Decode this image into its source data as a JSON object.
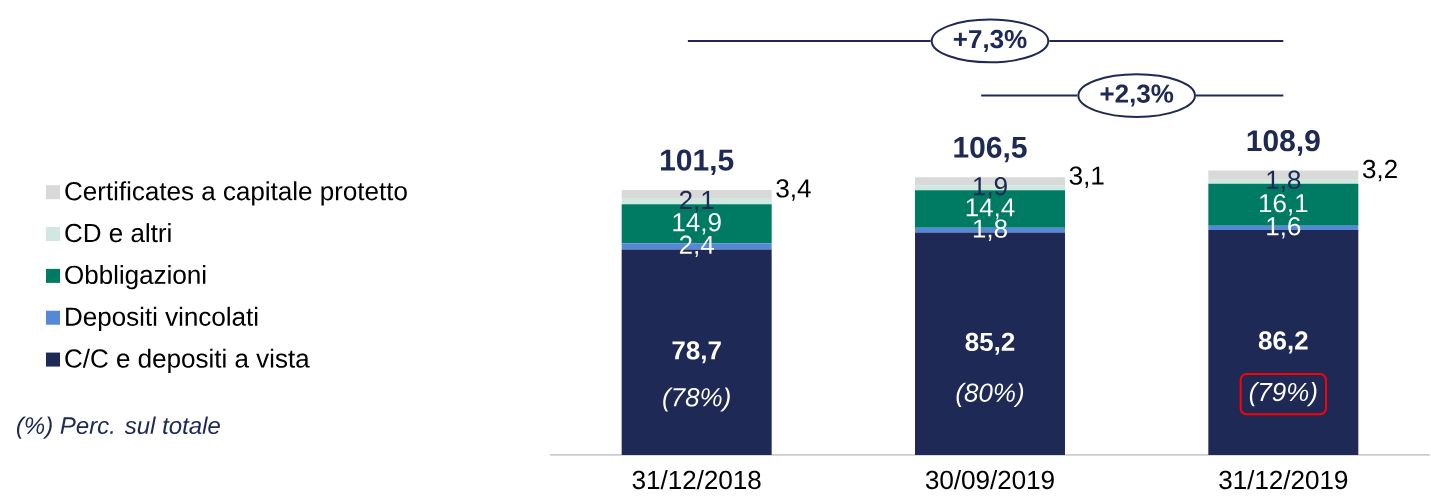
{
  "chart_data": {
    "type": "bar",
    "stacked": true,
    "legend": "left",
    "categories": [
      "31/12/2018",
      "30/09/2019",
      "31/12/2019"
    ],
    "series": [
      {
        "name": "C/C e depositi a vista",
        "color": "#1e2a55",
        "values": [
          78.7,
          85.2,
          86.2
        ],
        "value_labels": [
          "78,7",
          "85,2",
          "86,2"
        ]
      },
      {
        "name": "Depositi vincolati",
        "color": "#5588d6",
        "values": [
          2.4,
          1.8,
          1.6
        ],
        "value_labels": [
          "2,4",
          "1,8",
          "1,6"
        ]
      },
      {
        "name": "Obbligazioni",
        "color": "#007b63",
        "values": [
          14.9,
          14.4,
          16.1
        ],
        "value_labels": [
          "14,9",
          "14,4",
          "16,1"
        ]
      },
      {
        "name": "CD e altri",
        "color": "#cfe8e0",
        "values": [
          2.1,
          1.9,
          1.8
        ],
        "value_labels": [
          "2,1",
          "1,9",
          "1,8"
        ]
      },
      {
        "name": "Certificates a capitale protetto",
        "color": "#d9d9d9",
        "values": [
          3.4,
          3.1,
          3.2
        ],
        "value_labels": [
          "3,4",
          "3,1",
          "3,2"
        ]
      }
    ],
    "totals": [
      "101,5",
      "106,5",
      "108,9"
    ],
    "annotations": [
      "(78%)",
      "(80%)",
      "(79%)",
      "+7,3%",
      "+2,3%",
      "(%) Perc. sul totale"
    ]
  }
}
